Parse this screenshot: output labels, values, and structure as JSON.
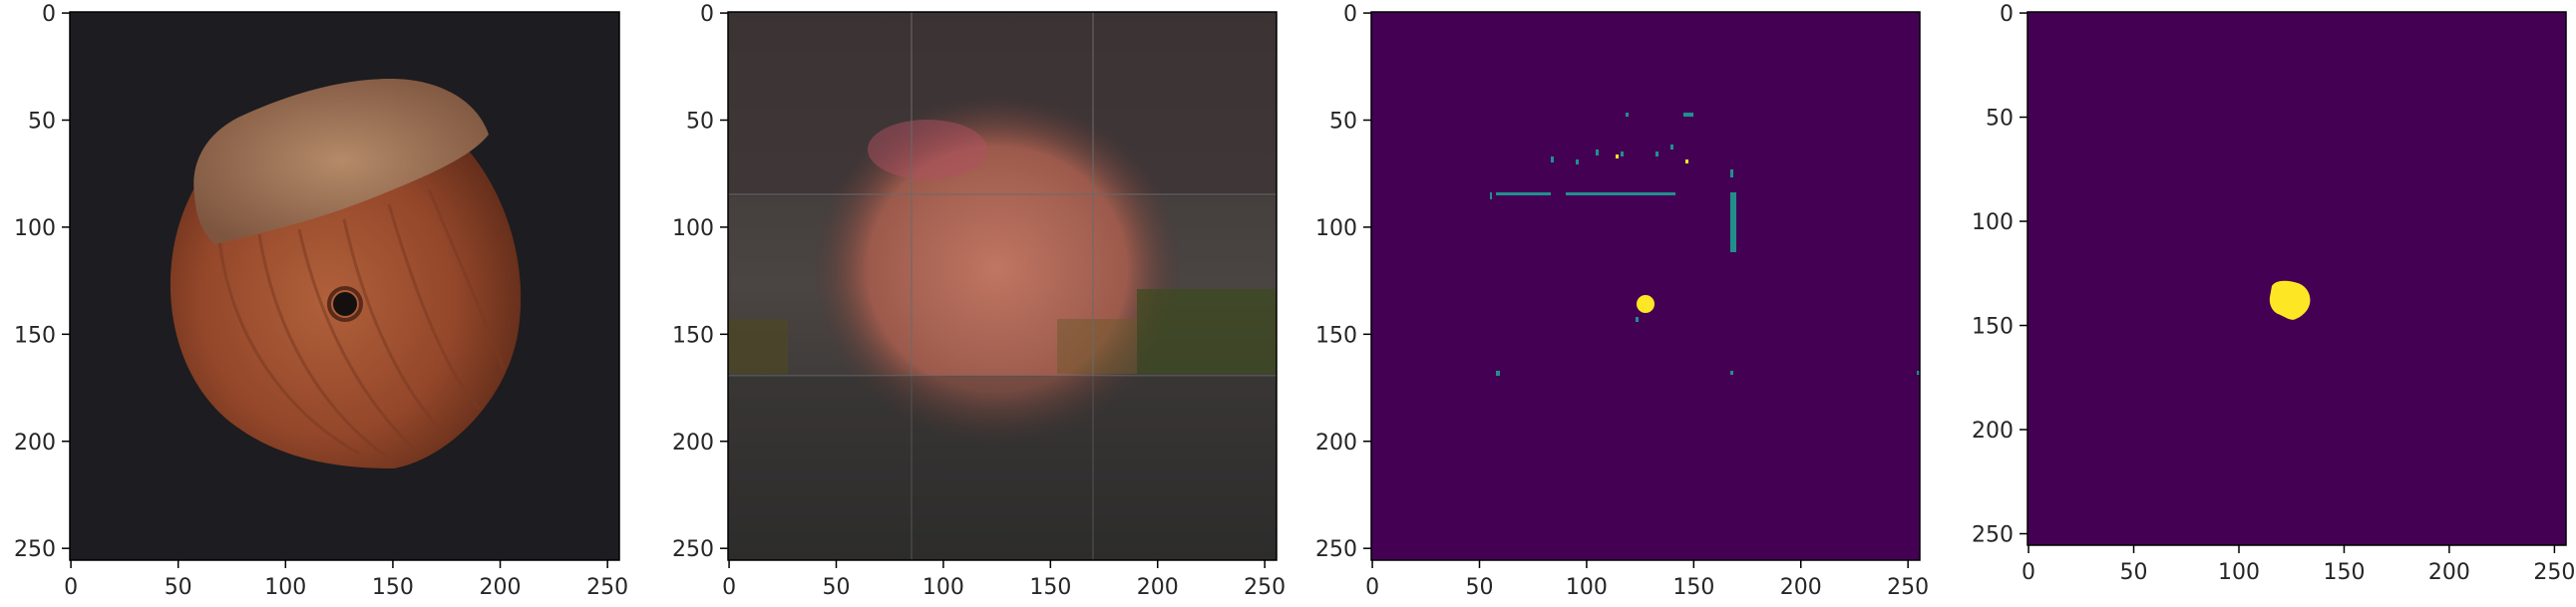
{
  "panels": [
    {
      "id": "input-image",
      "content": "hazelnut photograph on dark background with small hole",
      "x_ticks": [
        "0",
        "50",
        "100",
        "150",
        "200",
        "250"
      ],
      "y_ticks": [
        "0",
        "50",
        "100",
        "150",
        "200",
        "250"
      ]
    },
    {
      "id": "reconstruction",
      "content": "blurry reconstruction with tile seams",
      "x_ticks": [
        "0",
        "50",
        "100",
        "150",
        "200",
        "250"
      ],
      "y_ticks": [
        "0",
        "50",
        "100",
        "150",
        "200",
        "250"
      ]
    },
    {
      "id": "predicted-mask",
      "content": "dark purple mask with scattered teal/yellow speckles",
      "x_ticks": [
        "0",
        "50",
        "100",
        "150",
        "200",
        "250"
      ],
      "y_ticks": [
        "0",
        "50",
        "100",
        "150",
        "200",
        "250"
      ]
    },
    {
      "id": "ground-truth-mask",
      "content": "dark purple mask with single yellow blob",
      "x_ticks": [
        "0",
        "50",
        "100",
        "150",
        "200",
        "250"
      ],
      "y_ticks": [
        "0",
        "50",
        "100",
        "150",
        "200",
        "250"
      ]
    }
  ],
  "colors": {
    "background_dark": "#1d1c20",
    "nut_body": "#9a4b2c",
    "nut_cap": "#a77a5a",
    "mask_bg": "#440154",
    "mask_teal": "#21908d",
    "mask_yellow": "#fde725",
    "axis": "#000000",
    "tick_text": "#262626"
  },
  "tick_values": [
    0,
    50,
    100,
    150,
    200,
    250
  ]
}
